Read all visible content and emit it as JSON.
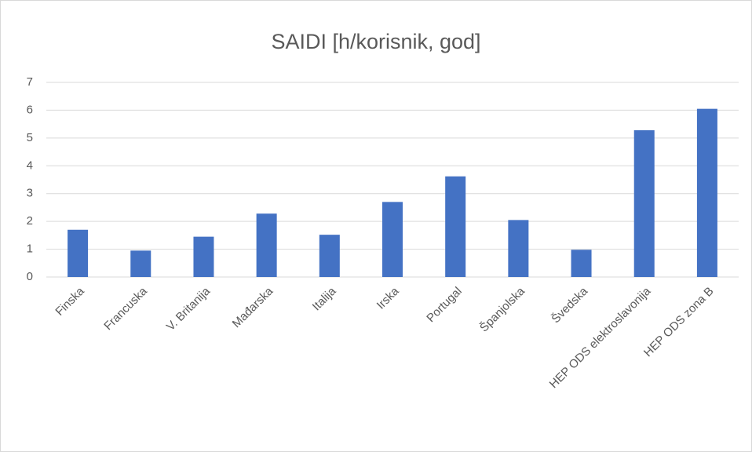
{
  "chart_data": {
    "type": "bar",
    "title": "SAIDI [h/korisnik, god]",
    "categories": [
      "Finska",
      "Francuska",
      "V. Britanija",
      "Mađarska",
      "Italija",
      "Irska",
      "Portugal",
      "Španjolska",
      "Švedska",
      "HEP ODS elektroslavonija",
      "HEP ODS zona B"
    ],
    "values": [
      1.7,
      0.95,
      1.45,
      2.28,
      1.52,
      2.7,
      3.62,
      2.05,
      0.98,
      5.28,
      6.05
    ],
    "color": "#4472c4",
    "ylim": [
      0,
      7
    ],
    "yticks": [
      0,
      1,
      2,
      3,
      4,
      5,
      6,
      7
    ],
    "grid": true
  }
}
